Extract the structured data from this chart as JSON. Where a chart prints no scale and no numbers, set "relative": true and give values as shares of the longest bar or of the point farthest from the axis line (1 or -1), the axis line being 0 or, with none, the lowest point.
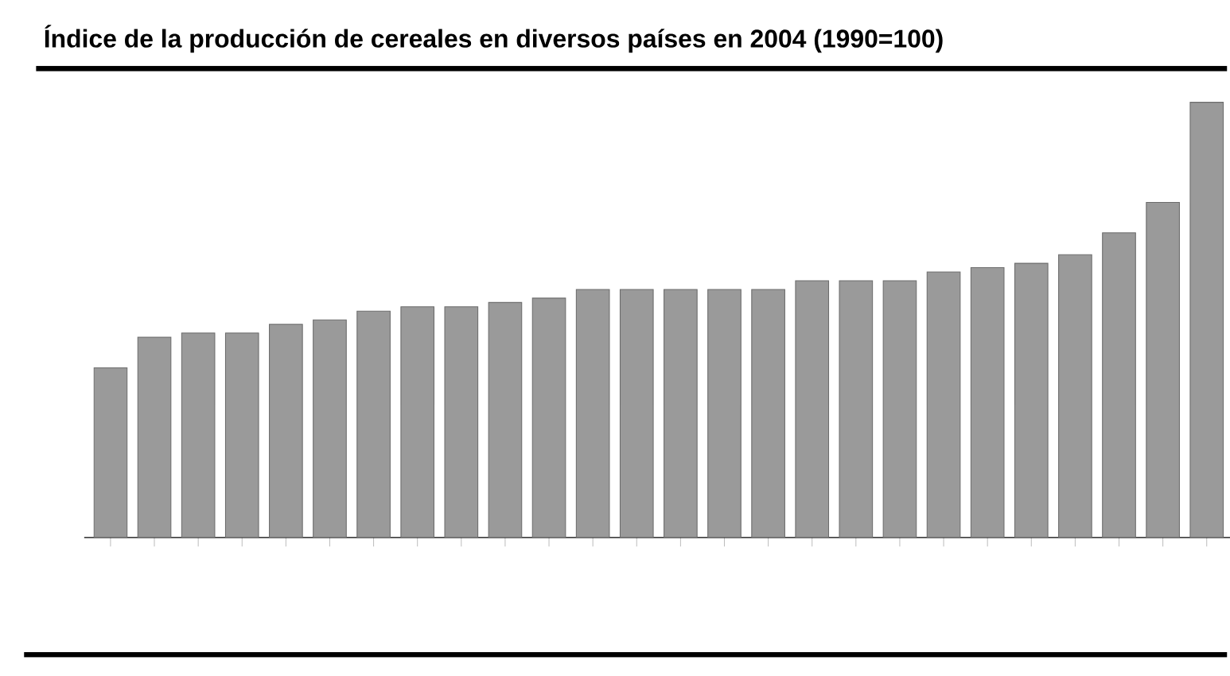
{
  "chart_data": {
    "type": "bar",
    "title": "Índice de la producción de cereales en diversos países en 2004 (1990=100)",
    "relative": true,
    "categories": [
      null,
      null,
      null,
      null,
      null,
      null,
      null,
      null,
      null,
      null,
      null,
      null,
      null,
      null,
      null,
      null,
      null,
      null,
      null,
      null,
      null,
      null,
      null,
      null,
      null,
      null
    ],
    "values": [
      0.39,
      0.46,
      0.47,
      0.47,
      0.49,
      0.5,
      0.52,
      0.53,
      0.53,
      0.54,
      0.55,
      0.57,
      0.57,
      0.57,
      0.57,
      0.57,
      0.59,
      0.59,
      0.59,
      0.61,
      0.62,
      0.63,
      0.65,
      0.7,
      0.77,
      1
    ],
    "color": "#9a9a9a"
  }
}
